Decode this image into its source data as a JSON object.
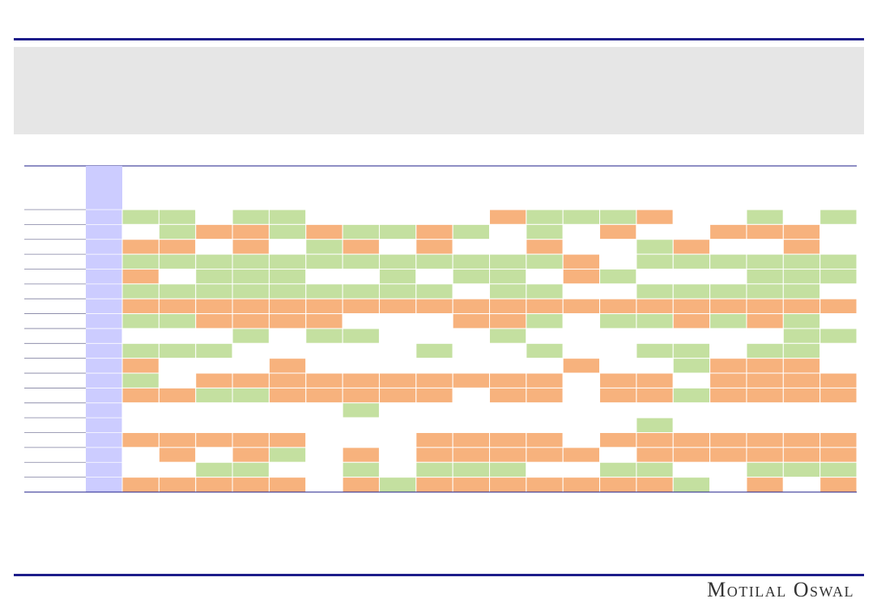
{
  "footer": {
    "brand": "Motilal Oswal"
  },
  "table": {
    "rows": [
      [
        "#c4e0a0",
        "#c4e0a0",
        "#ffffff",
        "#c4e0a0",
        "#c4e0a0",
        "#ffffff",
        "#ffffff",
        "#ffffff",
        "#ffffff",
        "#ffffff",
        "#f7b27d",
        "#c4e0a0",
        "#c4e0a0",
        "#c4e0a0",
        "#f7b27d",
        "#ffffff",
        "#ffffff",
        "#c4e0a0",
        "#ffffff",
        "#c4e0a0"
      ],
      [
        "#ffffff",
        "#c4e0a0",
        "#f7b27d",
        "#f7b27d",
        "#c4e0a0",
        "#f7b27d",
        "#c4e0a0",
        "#c4e0a0",
        "#f7b27d",
        "#c4e0a0",
        "#ffffff",
        "#c4e0a0",
        "#ffffff",
        "#f7b27d",
        "#ffffff",
        "#ffffff",
        "#f7b27d",
        "#f7b27d",
        "#f7b27d",
        "#ffffff"
      ],
      [
        "#f7b27d",
        "#f7b27d",
        "#ffffff",
        "#f7b27d",
        "#ffffff",
        "#c4e0a0",
        "#f7b27d",
        "#ffffff",
        "#f7b27d",
        "#ffffff",
        "#ffffff",
        "#f7b27d",
        "#ffffff",
        "#ffffff",
        "#c4e0a0",
        "#f7b27d",
        "#ffffff",
        "#ffffff",
        "#f7b27d",
        "#ffffff"
      ],
      [
        "#c4e0a0",
        "#c4e0a0",
        "#c4e0a0",
        "#c4e0a0",
        "#c4e0a0",
        "#c4e0a0",
        "#c4e0a0",
        "#c4e0a0",
        "#c4e0a0",
        "#c4e0a0",
        "#c4e0a0",
        "#c4e0a0",
        "#f7b27d",
        "#ffffff",
        "#c4e0a0",
        "#c4e0a0",
        "#c4e0a0",
        "#c4e0a0",
        "#c4e0a0",
        "#c4e0a0"
      ],
      [
        "#f7b27d",
        "#ffffff",
        "#c4e0a0",
        "#c4e0a0",
        "#c4e0a0",
        "#ffffff",
        "#ffffff",
        "#c4e0a0",
        "#ffffff",
        "#c4e0a0",
        "#c4e0a0",
        "#ffffff",
        "#f7b27d",
        "#c4e0a0",
        "#ffffff",
        "#ffffff",
        "#ffffff",
        "#c4e0a0",
        "#c4e0a0",
        "#c4e0a0"
      ],
      [
        "#c4e0a0",
        "#c4e0a0",
        "#c4e0a0",
        "#c4e0a0",
        "#c4e0a0",
        "#c4e0a0",
        "#c4e0a0",
        "#c4e0a0",
        "#c4e0a0",
        "#ffffff",
        "#c4e0a0",
        "#c4e0a0",
        "#ffffff",
        "#ffffff",
        "#c4e0a0",
        "#c4e0a0",
        "#c4e0a0",
        "#c4e0a0",
        "#c4e0a0",
        "#ffffff"
      ],
      [
        "#f7b27d",
        "#f7b27d",
        "#f7b27d",
        "#f7b27d",
        "#f7b27d",
        "#f7b27d",
        "#f7b27d",
        "#f7b27d",
        "#f7b27d",
        "#f7b27d",
        "#f7b27d",
        "#f7b27d",
        "#f7b27d",
        "#f7b27d",
        "#f7b27d",
        "#f7b27d",
        "#f7b27d",
        "#f7b27d",
        "#f7b27d",
        "#f7b27d"
      ],
      [
        "#c4e0a0",
        "#c4e0a0",
        "#f7b27d",
        "#f7b27d",
        "#f7b27d",
        "#f7b27d",
        "#ffffff",
        "#ffffff",
        "#ffffff",
        "#f7b27d",
        "#f7b27d",
        "#c4e0a0",
        "#ffffff",
        "#c4e0a0",
        "#c4e0a0",
        "#f7b27d",
        "#c4e0a0",
        "#f7b27d",
        "#c4e0a0",
        "#ffffff"
      ],
      [
        "#ffffff",
        "#ffffff",
        "#ffffff",
        "#c4e0a0",
        "#ffffff",
        "#c4e0a0",
        "#c4e0a0",
        "#ffffff",
        "#ffffff",
        "#ffffff",
        "#c4e0a0",
        "#ffffff",
        "#ffffff",
        "#ffffff",
        "#ffffff",
        "#ffffff",
        "#ffffff",
        "#ffffff",
        "#c4e0a0",
        "#c4e0a0"
      ],
      [
        "#c4e0a0",
        "#c4e0a0",
        "#c4e0a0",
        "#ffffff",
        "#ffffff",
        "#ffffff",
        "#ffffff",
        "#ffffff",
        "#c4e0a0",
        "#ffffff",
        "#ffffff",
        "#c4e0a0",
        "#ffffff",
        "#ffffff",
        "#c4e0a0",
        "#c4e0a0",
        "#ffffff",
        "#c4e0a0",
        "#c4e0a0",
        "#ffffff"
      ],
      [
        "#f7b27d",
        "#ffffff",
        "#ffffff",
        "#ffffff",
        "#f7b27d",
        "#ffffff",
        "#ffffff",
        "#ffffff",
        "#ffffff",
        "#ffffff",
        "#ffffff",
        "#ffffff",
        "#f7b27d",
        "#ffffff",
        "#ffffff",
        "#c4e0a0",
        "#f7b27d",
        "#f7b27d",
        "#f7b27d",
        "#ffffff"
      ],
      [
        "#c4e0a0",
        "#ffffff",
        "#f7b27d",
        "#f7b27d",
        "#f7b27d",
        "#f7b27d",
        "#f7b27d",
        "#f7b27d",
        "#f7b27d",
        "#f7b27d",
        "#f7b27d",
        "#f7b27d",
        "#ffffff",
        "#f7b27d",
        "#f7b27d",
        "#ffffff",
        "#f7b27d",
        "#f7b27d",
        "#f7b27d",
        "#f7b27d"
      ],
      [
        "#f7b27d",
        "#f7b27d",
        "#c4e0a0",
        "#c4e0a0",
        "#f7b27d",
        "#f7b27d",
        "#f7b27d",
        "#f7b27d",
        "#f7b27d",
        "#ffffff",
        "#f7b27d",
        "#f7b27d",
        "#ffffff",
        "#f7b27d",
        "#f7b27d",
        "#c4e0a0",
        "#f7b27d",
        "#f7b27d",
        "#f7b27d",
        "#f7b27d"
      ],
      [
        "#ffffff",
        "#ffffff",
        "#ffffff",
        "#ffffff",
        "#ffffff",
        "#ffffff",
        "#c4e0a0",
        "#ffffff",
        "#ffffff",
        "#ffffff",
        "#ffffff",
        "#ffffff",
        "#ffffff",
        "#ffffff",
        "#ffffff",
        "#ffffff",
        "#ffffff",
        "#ffffff",
        "#ffffff",
        "#ffffff"
      ],
      [
        "#ffffff",
        "#ffffff",
        "#ffffff",
        "#ffffff",
        "#ffffff",
        "#ffffff",
        "#ffffff",
        "#ffffff",
        "#ffffff",
        "#ffffff",
        "#ffffff",
        "#ffffff",
        "#ffffff",
        "#ffffff",
        "#c4e0a0",
        "#ffffff",
        "#ffffff",
        "#ffffff",
        "#ffffff",
        "#ffffff"
      ],
      [
        "#f7b27d",
        "#f7b27d",
        "#f7b27d",
        "#f7b27d",
        "#f7b27d",
        "#ffffff",
        "#ffffff",
        "#ffffff",
        "#f7b27d",
        "#f7b27d",
        "#f7b27d",
        "#f7b27d",
        "#ffffff",
        "#f7b27d",
        "#f7b27d",
        "#f7b27d",
        "#f7b27d",
        "#f7b27d",
        "#f7b27d",
        "#f7b27d"
      ],
      [
        "#ffffff",
        "#f7b27d",
        "#ffffff",
        "#f7b27d",
        "#c4e0a0",
        "#ffffff",
        "#f7b27d",
        "#ffffff",
        "#f7b27d",
        "#f7b27d",
        "#f7b27d",
        "#f7b27d",
        "#f7b27d",
        "#ffffff",
        "#f7b27d",
        "#f7b27d",
        "#f7b27d",
        "#f7b27d",
        "#f7b27d",
        "#f7b27d"
      ],
      [
        "#ffffff",
        "#ffffff",
        "#c4e0a0",
        "#c4e0a0",
        "#ffffff",
        "#ffffff",
        "#c4e0a0",
        "#ffffff",
        "#c4e0a0",
        "#c4e0a0",
        "#c4e0a0",
        "#ffffff",
        "#ffffff",
        "#c4e0a0",
        "#c4e0a0",
        "#ffffff",
        "#ffffff",
        "#c4e0a0",
        "#c4e0a0",
        "#c4e0a0"
      ],
      [
        "#f7b27d",
        "#f7b27d",
        "#f7b27d",
        "#f7b27d",
        "#f7b27d",
        "#ffffff",
        "#f7b27d",
        "#c4e0a0",
        "#f7b27d",
        "#f7b27d",
        "#f7b27d",
        "#f7b27d",
        "#f7b27d",
        "#f7b27d",
        "#f7b27d",
        "#c4e0a0",
        "#ffffff",
        "#f7b27d",
        "#ffffff",
        "#f7b27d"
      ]
    ]
  }
}
